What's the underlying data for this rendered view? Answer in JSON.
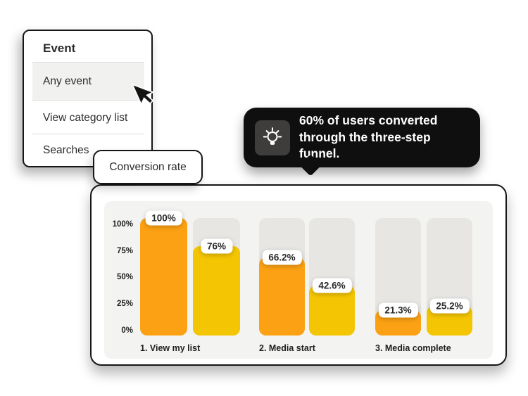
{
  "menu": {
    "title": "Event",
    "items": [
      {
        "label": "Any event",
        "highlighted": true
      },
      {
        "label": "View category list",
        "highlighted": false
      },
      {
        "label": "Searches",
        "highlighted": false
      }
    ]
  },
  "conversion_chip": {
    "label": "Conversion rate"
  },
  "tooltip": {
    "icon": "lightbulb-icon",
    "text": "60% of users converted through the three-step funnel.",
    "lines": [
      "60% of users converted",
      "through the three-step funnel."
    ]
  },
  "chart_data": {
    "type": "bar",
    "title": "Conversion rate",
    "categories": [
      "1. View my list",
      "2. Media start",
      "3. Media complete"
    ],
    "series": [
      {
        "name": "orange",
        "color": "#FCA113",
        "values": [
          100,
          66.2,
          21.3
        ]
      },
      {
        "name": "yellow",
        "color": "#F4C502",
        "values": [
          76,
          42.6,
          25.2
        ]
      }
    ],
    "value_labels": [
      "100%",
      "76%",
      "66.2%",
      "42.6%",
      "21.3%",
      "25.2%"
    ],
    "yticks": [
      "100%",
      "75%",
      "50%",
      "25%",
      "0%"
    ],
    "ylabel": "",
    "xlabel": "",
    "ylim": [
      0,
      100
    ],
    "grid": false,
    "legend": "none",
    "track_color": "#e7e6e3",
    "panel_color": "#f3f3f1"
  }
}
